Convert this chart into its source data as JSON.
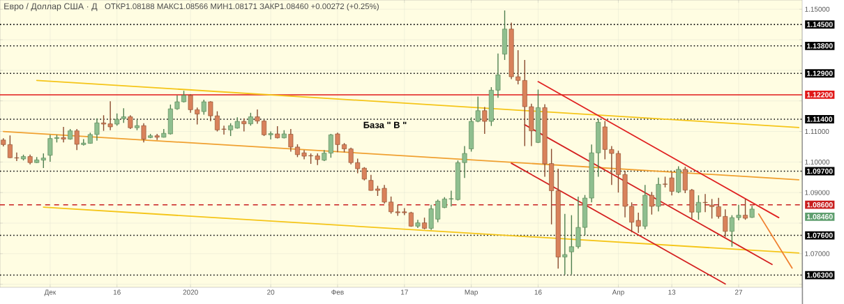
{
  "chart_data": {
    "type": "candlestick",
    "title": "Евро / Доллар США · Д",
    "subtitle": "ОТКР1.08188 МАКС1.08566 МИН1.08171 ЗАКР1.08460 +0.00272 (+0.25%)",
    "categories": [
      null,
      null,
      null,
      null,
      null,
      null,
      null,
      "Дек",
      null,
      null,
      null,
      null,
      null,
      null,
      null,
      null,
      null,
      "16",
      null,
      null,
      null,
      null,
      null,
      null,
      null,
      null,
      null,
      null,
      "2020",
      null,
      null,
      null,
      null,
      null,
      null,
      null,
      null,
      null,
      null,
      null,
      "20",
      null,
      null,
      null,
      null,
      null,
      null,
      null,
      null,
      null,
      "Фев",
      null,
      null,
      null,
      null,
      null,
      null,
      null,
      null,
      null,
      "17",
      null,
      null,
      null,
      null,
      null,
      null,
      null,
      null,
      null,
      "Мар",
      null,
      null,
      null,
      null,
      null,
      null,
      null,
      null,
      null,
      "16",
      null,
      null,
      null,
      null,
      null,
      null,
      null,
      null,
      null,
      null,
      null,
      "Апр",
      null,
      null,
      null,
      null,
      null,
      null,
      null,
      "13",
      null,
      null,
      null,
      null,
      null,
      null,
      null,
      null,
      null,
      "27",
      null,
      null,
      null,
      null,
      null,
      null,
      null,
      null,
      null
    ],
    "ohlc": [
      [
        1.1072,
        1.1078,
        1.1051,
        1.1057
      ],
      [
        1.1057,
        1.1087,
        1.1013,
        1.1014
      ],
      [
        1.1014,
        1.1031,
        1.1003,
        1.1013
      ],
      [
        1.101,
        1.1024,
        1.1005,
        1.1018
      ],
      [
        1.1018,
        1.1024,
        1.0992,
        1.0998
      ],
      [
        1.0998,
        1.1016,
        1.0997,
        1.1007
      ],
      [
        1.1006,
        1.1028,
        1.098,
        1.1013
      ],
      [
        1.1022,
        1.1089,
        1.1001,
        1.1077
      ],
      [
        1.1077,
        1.1089,
        1.1064,
        1.108
      ],
      [
        1.108,
        1.1115,
        1.1064,
        1.1075
      ],
      [
        1.1075,
        1.1108,
        1.1073,
        1.1102
      ],
      [
        1.1102,
        1.1108,
        1.1039,
        1.1058
      ],
      [
        1.1057,
        1.1075,
        1.1054,
        1.1062
      ],
      [
        1.1061,
        1.1096,
        1.106,
        1.109
      ],
      [
        1.109,
        1.1143,
        1.107,
        1.1128
      ],
      [
        1.1128,
        1.1153,
        1.1102,
        1.1124
      ],
      [
        1.1125,
        1.1199,
        1.1104,
        1.1115
      ],
      [
        1.1124,
        1.1159,
        1.1119,
        1.114
      ],
      [
        1.1142,
        1.1176,
        1.1128,
        1.1148
      ],
      [
        1.1148,
        1.1153,
        1.1108,
        1.1112
      ],
      [
        1.1112,
        1.1138,
        1.1104,
        1.1119
      ],
      [
        1.1119,
        1.1127,
        1.1064,
        1.1075
      ],
      [
        1.108,
        1.1092,
        1.1078,
        1.1086
      ],
      [
        1.1086,
        1.1092,
        1.1072,
        1.1081
      ],
      [
        1.1081,
        1.1108,
        1.108,
        1.1094
      ],
      [
        1.1092,
        1.1188,
        1.109,
        1.1174
      ],
      [
        1.1174,
        1.1218,
        1.1171,
        1.1197
      ],
      [
        1.1197,
        1.1233,
        1.1195,
        1.1218
      ],
      [
        1.1218,
        1.1222,
        1.1161,
        1.1171
      ],
      [
        1.1171,
        1.1178,
        1.1123,
        1.1157
      ],
      [
        1.1165,
        1.1204,
        1.1155,
        1.1197
      ],
      [
        1.1197,
        1.1199,
        1.1133,
        1.1151
      ],
      [
        1.1151,
        1.1166,
        1.11,
        1.1105
      ],
      [
        1.1108,
        1.1119,
        1.109,
        1.1107
      ],
      [
        1.1105,
        1.1127,
        1.1085,
        1.1119
      ],
      [
        1.1111,
        1.1146,
        1.1109,
        1.1133
      ],
      [
        1.1133,
        1.1143,
        1.11,
        1.1125
      ],
      [
        1.1125,
        1.1161,
        1.1119,
        1.1148
      ],
      [
        1.1148,
        1.1172,
        1.1125,
        1.1134
      ],
      [
        1.1134,
        1.1138,
        1.1085,
        1.1089
      ],
      [
        1.1089,
        1.11,
        1.1074,
        1.1093
      ],
      [
        1.1092,
        1.1117,
        1.1077,
        1.1079
      ],
      [
        1.1079,
        1.1104,
        1.1077,
        1.1092
      ],
      [
        1.1091,
        1.1108,
        1.1034,
        1.1049
      ],
      [
        1.1049,
        1.1058,
        1.1016,
        1.1024
      ],
      [
        1.103,
        1.1039,
        1.1009,
        1.1019
      ],
      [
        1.1021,
        1.1028,
        1.0994,
        1.102
      ],
      [
        1.102,
        1.1028,
        1.099,
        1.1008
      ],
      [
        1.1006,
        1.1039,
        1.1003,
        1.1029
      ],
      [
        1.1029,
        1.1092,
        1.1014,
        1.1089
      ],
      [
        1.1092,
        1.1096,
        1.1032,
        1.1057
      ],
      [
        1.1057,
        1.1062,
        1.1032,
        1.1043
      ],
      [
        1.1043,
        1.1047,
        1.0992,
        1.0998
      ],
      [
        1.0998,
        1.1011,
        1.0963,
        1.0978
      ],
      [
        1.098,
        1.0983,
        1.094,
        1.0944
      ],
      [
        1.094,
        1.0958,
        1.0906,
        1.0907
      ],
      [
        1.0912,
        1.0922,
        1.0889,
        1.0907
      ],
      [
        1.0914,
        1.0925,
        1.0864,
        1.0869
      ],
      [
        1.0869,
        1.0887,
        1.0831,
        1.0837
      ],
      [
        1.0837,
        1.086,
        1.0824,
        1.0834
      ],
      [
        1.0837,
        1.0849,
        1.0826,
        1.0834
      ],
      [
        1.0834,
        1.0837,
        1.0788,
        1.079
      ],
      [
        1.079,
        1.0811,
        1.0784,
        1.0801
      ],
      [
        1.0801,
        1.0818,
        1.078,
        1.0783
      ],
      [
        1.0783,
        1.086,
        1.0778,
        1.0847
      ],
      [
        1.0813,
        1.0877,
        1.0803,
        1.0872
      ],
      [
        1.0851,
        1.0885,
        1.0849,
        1.0879
      ],
      [
        1.0879,
        1.0906,
        1.0855,
        1.088
      ],
      [
        1.0877,
        1.1005,
        1.0874,
        1.0998
      ],
      [
        1.0998,
        1.1052,
        1.0948,
        1.1028
      ],
      [
        1.1043,
        1.1146,
        1.1034,
        1.1133
      ],
      [
        1.1133,
        1.1214,
        1.113,
        1.1168
      ],
      [
        1.1168,
        1.118,
        1.1092,
        1.1133
      ],
      [
        1.1133,
        1.1245,
        1.1118,
        1.1235
      ],
      [
        1.1235,
        1.1355,
        1.121,
        1.1285
      ],
      [
        1.1353,
        1.1496,
        1.1334,
        1.1435
      ],
      [
        1.1435,
        1.1456,
        1.1271,
        1.1279
      ],
      [
        1.1279,
        1.1366,
        1.1254,
        1.1267
      ],
      [
        1.1267,
        1.1334,
        1.1052,
        1.1181
      ],
      [
        1.1181,
        1.1191,
        1.1052,
        1.1102
      ],
      [
        1.1064,
        1.1237,
        1.1062,
        1.1178
      ],
      [
        1.1178,
        1.1189,
        1.0952,
        1.0994
      ],
      [
        1.0995,
        1.1043,
        1.0796,
        1.0906
      ],
      [
        1.0906,
        1.0978,
        1.0651,
        1.0689
      ],
      [
        1.0689,
        1.083,
        1.0632,
        1.0697
      ],
      [
        1.0706,
        1.0826,
        1.0632,
        1.0723
      ],
      [
        1.0723,
        1.0887,
        1.0717,
        1.0786
      ],
      [
        1.0786,
        1.0892,
        1.0761,
        1.0882
      ],
      [
        1.0882,
        1.1057,
        1.0868,
        1.103
      ],
      [
        1.103,
        1.1142,
        1.0952,
        1.113
      ],
      [
        1.1115,
        1.1134,
        1.1009,
        1.1041
      ],
      [
        1.1041,
        1.1052,
        1.0925,
        1.1028
      ],
      [
        1.1028,
        1.1037,
        1.09,
        1.0959
      ],
      [
        1.0959,
        1.0971,
        1.0819,
        1.0855
      ],
      [
        1.0855,
        1.0868,
        1.077,
        1.0803
      ],
      [
        1.0809,
        1.0834,
        1.0768,
        1.079
      ],
      [
        1.079,
        1.0925,
        1.078,
        1.0891
      ],
      [
        1.0891,
        1.0902,
        1.0828,
        1.0855
      ],
      [
        1.0855,
        1.0949,
        1.0838,
        1.0927
      ],
      [
        1.0928,
        1.0952,
        1.0917,
        1.0927
      ],
      [
        1.0948,
        1.0967,
        1.0891,
        1.0904
      ],
      [
        1.0902,
        1.0986,
        1.0898,
        1.0976
      ],
      [
        1.0976,
        1.0984,
        1.0898,
        1.0908
      ],
      [
        1.0908,
        1.0912,
        1.0815,
        1.0836
      ],
      [
        1.0836,
        1.0891,
        1.0811,
        1.0868
      ],
      [
        1.0868,
        1.0895,
        1.0836,
        1.0867
      ],
      [
        1.0859,
        1.0879,
        1.0815,
        1.0854
      ],
      [
        1.0854,
        1.0883,
        1.0815,
        1.0822
      ],
      [
        1.0822,
        1.0845,
        1.0755,
        1.0773
      ],
      [
        1.0773,
        1.0826,
        1.0723,
        1.0818
      ],
      [
        1.0818,
        1.086,
        1.0809,
        1.0826
      ],
      [
        1.0826,
        1.0879,
        1.0811,
        1.0816
      ],
      [
        1.08188,
        1.08566,
        1.08171,
        1.0846
      ],
      null,
      null,
      null,
      null,
      null,
      null,
      null
    ],
    "series": [
      {
        "type": "line",
        "color": "#f5c518",
        "values": [
          null,
          null,
          null,
          null,
          null,
          1.1267,
          null,
          null,
          null,
          null,
          null,
          null,
          null,
          null,
          null,
          null,
          null,
          null,
          null,
          null,
          null,
          null,
          null,
          null,
          null,
          null,
          null,
          null,
          null,
          null,
          null,
          null,
          null,
          null,
          null,
          null,
          null,
          null,
          null,
          null,
          null,
          null,
          null,
          null,
          null,
          null,
          null,
          null,
          null,
          null,
          null,
          null,
          null,
          null,
          null,
          null,
          null,
          null,
          null,
          null,
          null,
          null,
          null,
          null,
          null,
          null,
          null,
          null,
          null,
          null,
          null,
          null,
          null,
          null,
          null,
          null,
          null,
          null,
          null,
          null,
          null,
          null,
          null,
          null,
          null,
          null,
          null,
          null,
          null,
          null,
          null,
          null,
          null,
          null,
          null,
          null,
          null,
          null,
          null,
          null,
          null,
          null,
          null,
          null,
          null,
          null,
          null,
          null,
          null,
          null,
          null,
          null,
          null,
          null,
          null,
          null,
          null,
          null,
          null,
          1.1113
        ]
      },
      {
        "type": "line",
        "color": "#f0a030",
        "values": [
          1.11,
          null,
          null,
          null,
          null,
          null,
          null,
          null,
          null,
          null,
          null,
          null,
          null,
          null,
          null,
          null,
          null,
          null,
          null,
          null,
          null,
          null,
          null,
          null,
          null,
          null,
          null,
          null,
          null,
          null,
          null,
          null,
          null,
          null,
          null,
          null,
          null,
          null,
          null,
          null,
          null,
          null,
          null,
          null,
          null,
          null,
          null,
          null,
          null,
          null,
          null,
          null,
          null,
          null,
          null,
          null,
          null,
          null,
          null,
          null,
          null,
          null,
          null,
          null,
          null,
          null,
          null,
          null,
          null,
          null,
          null,
          null,
          null,
          null,
          null,
          null,
          null,
          null,
          null,
          null,
          null,
          null,
          null,
          null,
          null,
          null,
          null,
          null,
          null,
          null,
          null,
          null,
          null,
          null,
          null,
          null,
          null,
          null,
          null,
          null,
          null,
          null,
          null,
          null,
          null,
          null,
          null,
          null,
          null,
          null,
          null,
          null,
          null,
          null,
          null,
          null,
          null,
          null,
          null,
          1.0942
        ]
      },
      {
        "type": "line",
        "color": "#f5c518",
        "values": [
          null,
          null,
          null,
          null,
          null,
          null,
          1.0852,
          null,
          null,
          null,
          null,
          null,
          null,
          null,
          null,
          null,
          null,
          null,
          null,
          null,
          null,
          null,
          null,
          null,
          null,
          null,
          null,
          null,
          null,
          null,
          null,
          null,
          null,
          null,
          null,
          null,
          null,
          null,
          null,
          null,
          null,
          null,
          null,
          null,
          null,
          null,
          null,
          null,
          null,
          null,
          null,
          null,
          null,
          null,
          null,
          null,
          null,
          null,
          null,
          null,
          null,
          null,
          null,
          null,
          null,
          null,
          null,
          null,
          null,
          null,
          null,
          null,
          null,
          null,
          null,
          null,
          null,
          null,
          null,
          null,
          null,
          null,
          null,
          null,
          null,
          null,
          null,
          null,
          null,
          null,
          null,
          null,
          null,
          null,
          null,
          null,
          null,
          null,
          null,
          null,
          null,
          null,
          null,
          null,
          null,
          null,
          null,
          null,
          null,
          null,
          null,
          null,
          null,
          null,
          null,
          null,
          null,
          null,
          null,
          1.0702
        ]
      },
      {
        "type": "line",
        "color": "#e02020",
        "values": [
          null,
          null,
          null,
          null,
          null,
          null,
          null,
          null,
          null,
          null,
          null,
          null,
          null,
          null,
          null,
          null,
          null,
          null,
          null,
          null,
          null,
          null,
          null,
          null,
          null,
          null,
          null,
          null,
          null,
          null,
          null,
          null,
          null,
          null,
          null,
          null,
          null,
          null,
          null,
          null,
          null,
          null,
          null,
          null,
          null,
          null,
          null,
          null,
          null,
          null,
          null,
          null,
          null,
          null,
          null,
          null,
          null,
          null,
          null,
          null,
          null,
          null,
          null,
          null,
          null,
          null,
          null,
          null,
          null,
          null,
          null,
          null,
          null,
          null,
          null,
          null,
          null,
          null,
          null,
          null,
          1.1263,
          null,
          null,
          null,
          null,
          null,
          null,
          null,
          null,
          null,
          null,
          null,
          null,
          null,
          null,
          null,
          null,
          null,
          null,
          null,
          null,
          null,
          null,
          null,
          null,
          null,
          null,
          null,
          null,
          null,
          null,
          null,
          null,
          null,
          null,
          null,
          1.0818,
          null,
          null,
          null
        ]
      },
      {
        "type": "line",
        "color": "#d42020",
        "values": [
          null,
          null,
          null,
          null,
          null,
          null,
          null,
          null,
          null,
          null,
          null,
          null,
          null,
          null,
          null,
          null,
          null,
          null,
          null,
          null,
          null,
          null,
          null,
          null,
          null,
          null,
          null,
          null,
          null,
          null,
          null,
          null,
          null,
          null,
          null,
          null,
          null,
          null,
          null,
          null,
          null,
          null,
          null,
          null,
          null,
          null,
          null,
          null,
          null,
          null,
          null,
          null,
          null,
          null,
          null,
          null,
          null,
          null,
          null,
          null,
          null,
          null,
          null,
          null,
          null,
          null,
          null,
          null,
          null,
          null,
          null,
          null,
          null,
          null,
          null,
          null,
          null,
          null,
          1.1122,
          null,
          null,
          null,
          null,
          null,
          null,
          null,
          null,
          null,
          null,
          null,
          null,
          null,
          null,
          null,
          null,
          null,
          null,
          null,
          null,
          null,
          null,
          null,
          null,
          null,
          null,
          null,
          null,
          null,
          null,
          null,
          null,
          null,
          null,
          null,
          null,
          1.0665,
          null,
          null,
          null,
          null
        ]
      },
      {
        "type": "line",
        "color": "#d42020",
        "values": [
          null,
          null,
          null,
          null,
          null,
          null,
          null,
          null,
          null,
          null,
          null,
          null,
          null,
          null,
          null,
          null,
          null,
          null,
          null,
          null,
          null,
          null,
          null,
          null,
          null,
          null,
          null,
          null,
          null,
          null,
          null,
          null,
          null,
          null,
          null,
          null,
          null,
          null,
          null,
          null,
          null,
          null,
          null,
          null,
          null,
          null,
          null,
          null,
          null,
          null,
          null,
          null,
          null,
          null,
          null,
          null,
          null,
          null,
          null,
          null,
          null,
          null,
          null,
          null,
          null,
          null,
          null,
          null,
          null,
          null,
          null,
          null,
          null,
          null,
          null,
          null,
          1.0996,
          null,
          null,
          null,
          null,
          null,
          null,
          null,
          null,
          null,
          null,
          null,
          null,
          null,
          null,
          null,
          null,
          null,
          null,
          null,
          null,
          null,
          null,
          null,
          null,
          null,
          null,
          null,
          null,
          null,
          null,
          null,
          1.0601,
          null,
          null,
          null,
          null,
          null,
          null,
          null,
          null,
          null,
          null,
          null
        ]
      },
      {
        "type": "line",
        "color": "#f08030",
        "values": [
          null,
          null,
          null,
          null,
          null,
          null,
          null,
          null,
          null,
          null,
          null,
          null,
          null,
          null,
          null,
          null,
          null,
          null,
          null,
          null,
          null,
          null,
          null,
          null,
          null,
          null,
          null,
          null,
          null,
          null,
          null,
          null,
          null,
          null,
          null,
          null,
          null,
          null,
          null,
          null,
          null,
          null,
          null,
          null,
          null,
          null,
          null,
          null,
          null,
          null,
          null,
          null,
          null,
          null,
          null,
          null,
          null,
          null,
          null,
          null,
          null,
          null,
          null,
          null,
          null,
          null,
          null,
          null,
          null,
          null,
          null,
          null,
          null,
          null,
          null,
          null,
          null,
          null,
          null,
          null,
          null,
          null,
          null,
          null,
          null,
          null,
          null,
          null,
          null,
          null,
          null,
          null,
          null,
          null,
          null,
          null,
          null,
          null,
          null,
          null,
          null,
          null,
          null,
          null,
          null,
          null,
          null,
          null,
          null,
          null,
          null,
          null,
          null,
          1.083,
          null,
          null,
          null,
          null,
          1.0653,
          null
        ]
      }
    ],
    "ylim": [
      1.059,
      1.153
    ],
    "yticks": [
      {
        "value": 1.06,
        "label": null
      },
      {
        "value": 1.07,
        "label": "1.07000"
      },
      {
        "value": 1.08,
        "label": null
      },
      {
        "value": 1.09,
        "label": "1.09000"
      },
      {
        "value": 1.1,
        "label": "1.10000"
      },
      {
        "value": 1.11,
        "label": "1.11000"
      },
      {
        "value": 1.12,
        "label": null
      },
      {
        "value": 1.13,
        "label": null
      },
      {
        "value": 1.14,
        "label": null
      },
      {
        "value": 1.15,
        "label": "1.15000"
      }
    ],
    "ref_lines": [
      {
        "axis": "y",
        "value": 1.145,
        "label": "1.14500",
        "color": "#000000",
        "line_style": "dotted"
      },
      {
        "axis": "y",
        "value": 1.138,
        "label": "1.13800",
        "color": "#000000",
        "line_style": "dotted"
      },
      {
        "axis": "y",
        "value": 1.129,
        "label": "1.12900",
        "color": "#000000",
        "line_style": "dotted"
      },
      {
        "axis": "y",
        "value": 1.122,
        "label": "1.12200",
        "color": "#e01818",
        "line_style": "solid"
      },
      {
        "axis": "y",
        "value": 1.114,
        "label": "1.11400",
        "color": "#000000",
        "line_style": "dotted"
      },
      {
        "axis": "y",
        "value": 1.097,
        "label": "1.09700",
        "color": "#000000",
        "line_style": "dotted"
      },
      {
        "axis": "y",
        "value": 1.086,
        "label": "1.08600",
        "color": "#c81e1e",
        "line_style": "dashed"
      },
      {
        "axis": "y",
        "value": 1.076,
        "label": "1.07600",
        "color": "#000000",
        "line_style": "dotted"
      },
      {
        "axis": "y",
        "value": 1.063,
        "label": "1.06300",
        "color": "#000000",
        "line_style": "dotted"
      }
    ],
    "annotations": [
      "База \" B \"",
      "1.08460"
    ],
    "grid": true
  }
}
